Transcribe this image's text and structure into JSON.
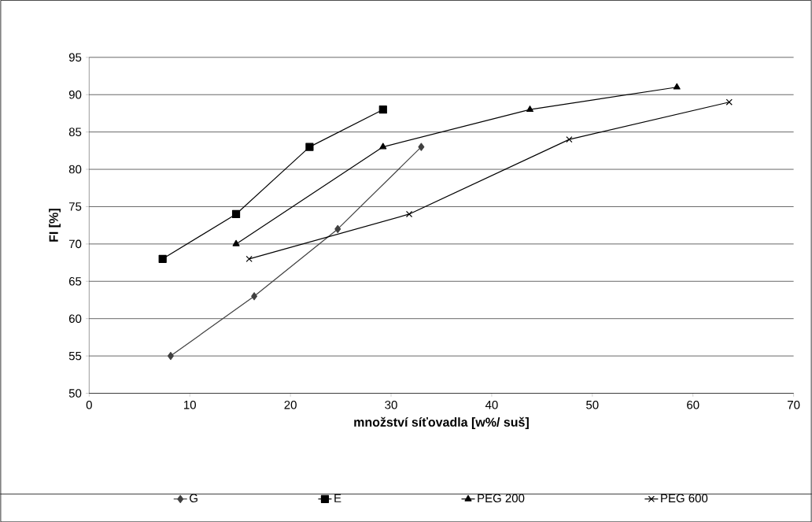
{
  "chart_data": {
    "type": "line",
    "xlabel": "množství síťovadla [w%/ suš]",
    "ylabel": "FI [%]",
    "xlim": [
      0,
      70
    ],
    "xticks": [
      0,
      10,
      20,
      30,
      40,
      50,
      60,
      70
    ],
    "ylim": [
      50,
      95
    ],
    "yticks": [
      50,
      55,
      60,
      65,
      70,
      75,
      80,
      85,
      90,
      95
    ],
    "grid": "y",
    "legend": "bottom",
    "line_style": "solid",
    "series": [
      {
        "name": "G",
        "color": "#404040",
        "marker": "diamond",
        "x": [
          8.1,
          16.4,
          24.7,
          33
        ],
        "values": [
          55,
          63,
          72,
          83
        ]
      },
      {
        "name": "E",
        "color": "#000000",
        "marker": "square",
        "x": [
          7.3,
          14.6,
          21.9,
          29.2
        ],
        "values": [
          68,
          74,
          83,
          88
        ]
      },
      {
        "name": "PEG 200",
        "color": "#000000",
        "marker": "triangle",
        "x": [
          14.6,
          29.2,
          43.8,
          58.4
        ],
        "values": [
          70,
          83,
          88,
          91
        ]
      },
      {
        "name": "PEG 600",
        "color": "#000000",
        "marker": "cross",
        "x": [
          15.9,
          31.8,
          47.7,
          63.6
        ],
        "values": [
          68,
          74,
          84,
          89
        ]
      }
    ]
  }
}
